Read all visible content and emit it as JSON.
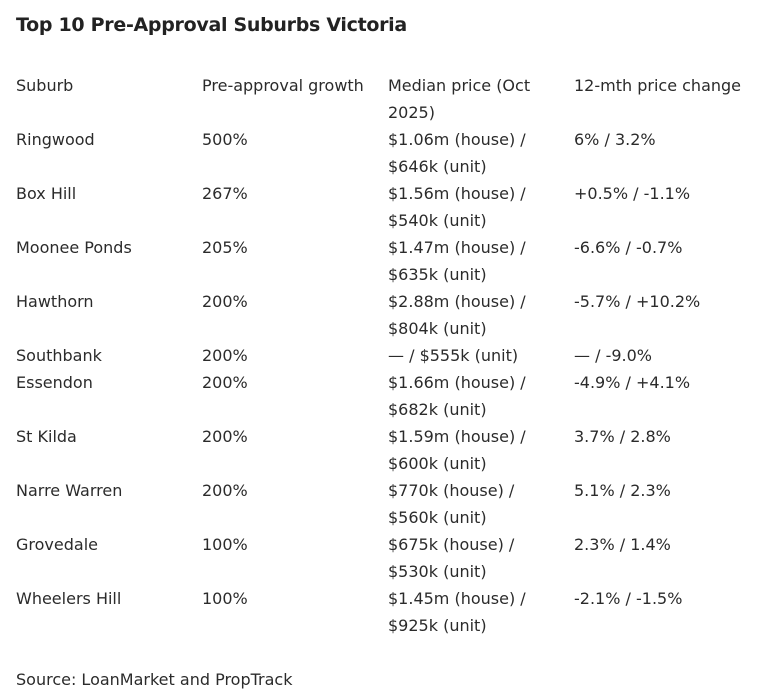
{
  "title": "Top 10 Pre-Approval Suburbs Victoria",
  "table": {
    "headers": [
      "Suburb",
      "Pre-approval growth",
      "Median price (Oct 2025)",
      "12-mth price change"
    ],
    "rows": [
      {
        "suburb": "Ringwood",
        "growth": "500%",
        "median_line1": "$1.06m (house) /",
        "median_line2": "$646k (unit)",
        "change": "6% / 3.2%"
      },
      {
        "suburb": "Box Hill",
        "growth": "267%",
        "median_line1": "$1.56m (house) /",
        "median_line2": "$540k (unit)",
        "change": "+0.5% / -1.1%"
      },
      {
        "suburb": "Moonee Ponds",
        "growth": "205%",
        "median_line1": "$1.47m (house) /",
        "median_line2": "$635k (unit)",
        "change": "-6.6% / -0.7%"
      },
      {
        "suburb": "Hawthorn",
        "growth": "200%",
        "median_line1": "$2.88m (house) /",
        "median_line2": "$804k (unit)",
        "change": "-5.7% / +10.2%"
      },
      {
        "suburb": "Southbank",
        "growth": "200%",
        "median_line1": "— / $555k (unit)",
        "median_line2": "",
        "change": "— / -9.0%"
      },
      {
        "suburb": "Essendon",
        "growth": "200%",
        "median_line1": "$1.66m (house) /",
        "median_line2": "$682k (unit)",
        "change": "-4.9% / +4.1%"
      },
      {
        "suburb": "St Kilda",
        "growth": "200%",
        "median_line1": "$1.59m (house) /",
        "median_line2": "$600k (unit)",
        "change": "3.7% / 2.8%"
      },
      {
        "suburb": "Narre Warren",
        "growth": "200%",
        "median_line1": "$770k (house) /",
        "median_line2": "$560k (unit)",
        "change": "5.1% / 2.3%"
      },
      {
        "suburb": "Grovedale",
        "growth": "100%",
        "median_line1": "$675k (house) /",
        "median_line2": "$530k (unit)",
        "change": "2.3% / 1.4%"
      },
      {
        "suburb": "Wheelers Hill",
        "growth": "100%",
        "median_line1": "$1.45m (house) /",
        "median_line2": "$925k (unit)",
        "change": "-2.1% / -1.5%"
      }
    ]
  },
  "source": "Source: LoanMarket and PropTrack"
}
